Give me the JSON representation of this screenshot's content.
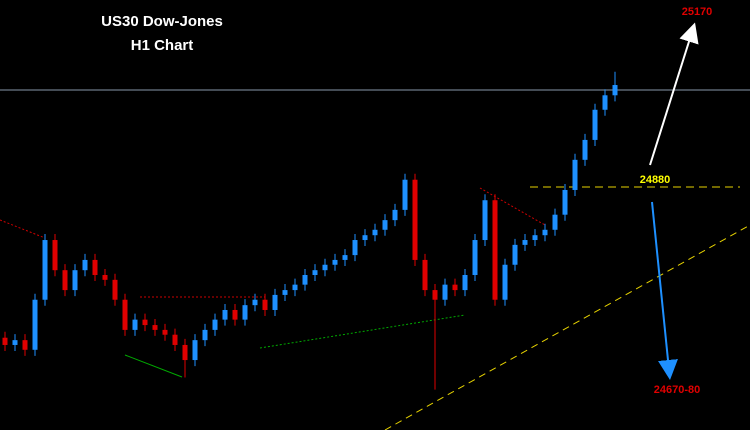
{
  "chart_data": {
    "type": "candlestick",
    "title": "US30 Dow-Jones",
    "subtitle": "H1 Chart",
    "up_color": "#1e90ff",
    "down_color": "#e00000",
    "open": [
      24630,
      24618,
      24626,
      24610,
      24693,
      24792,
      24742,
      24709,
      24742,
      24759,
      24734,
      24726,
      24693,
      24643,
      24660,
      24651,
      24643,
      24635,
      24618,
      24593,
      24626,
      24643,
      24660,
      24676,
      24660,
      24684,
      24693,
      24676,
      24701,
      24709,
      24718,
      24734,
      24742,
      24751,
      24759,
      24767,
      24792,
      24800,
      24809,
      24825,
      24842,
      24892,
      24759,
      24709,
      24693,
      24718,
      24709,
      24734,
      24792,
      24858,
      24693,
      24751,
      24784,
      24792,
      24800,
      24809,
      24834,
      24875,
      24925,
      24958,
      25008,
      25032
    ],
    "high": [
      24640,
      24636,
      24636,
      24703,
      24802,
      24802,
      24752,
      24752,
      24769,
      24769,
      24744,
      24736,
      24703,
      24670,
      24670,
      24661,
      24653,
      24645,
      24628,
      24636,
      24653,
      24670,
      24686,
      24686,
      24694,
      24703,
      24703,
      24711,
      24719,
      24728,
      24744,
      24752,
      24761,
      24769,
      24777,
      24802,
      24810,
      24819,
      24835,
      24852,
      24902,
      24902,
      24769,
      24719,
      24728,
      24728,
      24744,
      24802,
      24868,
      24868,
      24761,
      24794,
      24802,
      24810,
      24819,
      24844,
      24885,
      24935,
      24968,
      25018,
      25042,
      25071
    ],
    "low": [
      24608,
      24608,
      24600,
      24600,
      24683,
      24732,
      24699,
      24699,
      24732,
      24724,
      24716,
      24683,
      24633,
      24633,
      24641,
      24633,
      24625,
      24608,
      24564,
      24583,
      24616,
      24633,
      24650,
      24650,
      24650,
      24674,
      24666,
      24666,
      24691,
      24699,
      24708,
      24724,
      24732,
      24741,
      24749,
      24757,
      24782,
      24790,
      24799,
      24815,
      24832,
      24749,
      24699,
      24544,
      24683,
      24699,
      24699,
      24724,
      24782,
      24683,
      24683,
      24741,
      24774,
      24782,
      24790,
      24799,
      24824,
      24865,
      24915,
      24948,
      24998,
      25022
    ],
    "close": [
      24618,
      24626,
      24610,
      24693,
      24792,
      24742,
      24709,
      24742,
      24759,
      24734,
      24726,
      24693,
      24643,
      24660,
      24651,
      24643,
      24635,
      24618,
      24593,
      24626,
      24643,
      24660,
      24676,
      24660,
      24684,
      24693,
      24676,
      24701,
      24709,
      24718,
      24734,
      24742,
      24751,
      24759,
      24767,
      24792,
      24800,
      24809,
      24825,
      24842,
      24892,
      24759,
      24709,
      24693,
      24718,
      24709,
      24734,
      24792,
      24858,
      24693,
      24751,
      24784,
      24792,
      24800,
      24809,
      24834,
      24875,
      24925,
      24958,
      25008,
      25032,
      25049
    ],
    "ylim": [
      24477,
      25190
    ],
    "levels": [
      {
        "value": 25170,
        "label": "25170"
      },
      {
        "value": 24880,
        "label": "24880"
      }
    ],
    "target_label": "24670-80"
  }
}
